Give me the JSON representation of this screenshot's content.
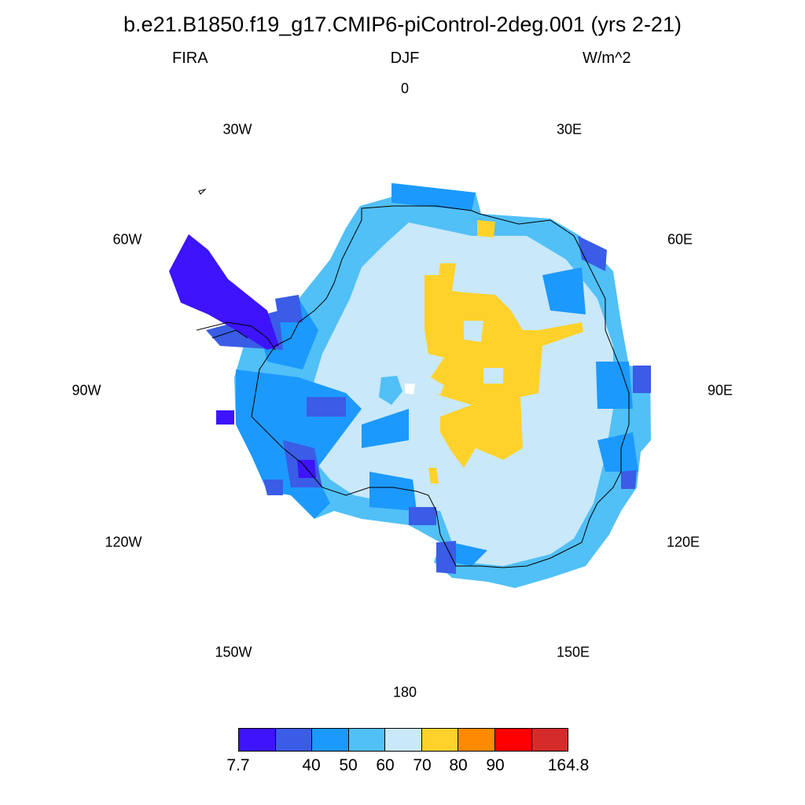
{
  "title": "b.e21.B1850.f19_g17.CMIP6-piControl-2deg.001 (yrs 2-21)",
  "variable": "FIRA",
  "season": "DJF",
  "units": "W/m^2",
  "longitude_labels": {
    "lon_0": "0",
    "lon_30e": "30E",
    "lon_60e": "60E",
    "lon_90e": "90E",
    "lon_120e": "120E",
    "lon_150e": "150E",
    "lon_180": "180",
    "lon_150w": "150W",
    "lon_120w": "120W",
    "lon_90w": "90W",
    "lon_60w": "60W",
    "lon_30w": "30W"
  },
  "colorbar": {
    "colors": [
      "#3d14fb",
      "#3a5ce6",
      "#1c99fd",
      "#51c0f6",
      "#c9e8f9",
      "#fed22a",
      "#fd8a00",
      "#ff0000",
      "#d52b2a"
    ],
    "labels": [
      "7.7",
      "40",
      "50",
      "60",
      "70",
      "80",
      "90",
      "164.8"
    ]
  },
  "palette": {
    "c1": "#3d14fb",
    "c2": "#3a5ce6",
    "c3": "#1c99fd",
    "c4": "#51c0f6",
    "c5": "#c9e8f9",
    "c6": "#fed22a"
  }
}
